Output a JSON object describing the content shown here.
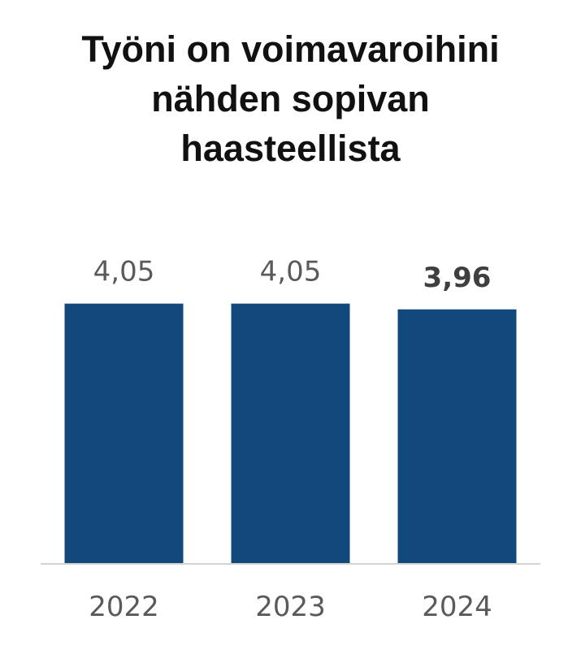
{
  "title_lines": [
    "Työni on voimavaroihini",
    "nähden sopivan",
    "haasteellista"
  ],
  "chart_data": {
    "type": "bar",
    "title": "Työni on voimavaroihini nähden sopivan haasteellista",
    "categories": [
      "2022",
      "2023",
      "2024"
    ],
    "values": [
      4.05,
      4.05,
      3.96
    ],
    "value_labels": [
      "4,05",
      "4,05",
      "3,96"
    ],
    "highlighted_index": 2,
    "ylim": [
      0,
      4.7
    ],
    "xlabel": "",
    "ylabel": "",
    "grid": false,
    "legend": "none",
    "bar_color": "#12497d",
    "baseline_color": "#d3d3d3"
  }
}
